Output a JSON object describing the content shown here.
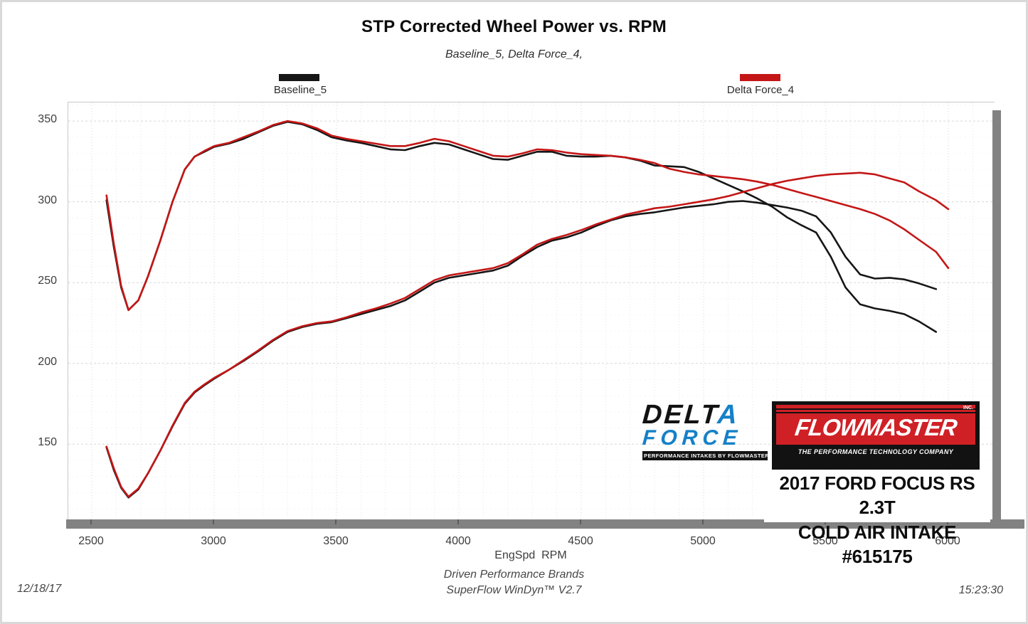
{
  "chart_data": {
    "type": "line",
    "title": "STP Corrected Wheel Power vs. RPM",
    "subtitle": "Baseline_5, Delta Force_4,",
    "xlabel": "EngSpd  RPM",
    "x_ticks": [
      2500,
      3000,
      3500,
      4000,
      4500,
      5000,
      5500,
      6000
    ],
    "y_ticks": [
      150,
      200,
      250,
      300,
      350
    ],
    "xlim": [
      2404,
      6189
    ],
    "ylim": [
      103,
      361.5
    ],
    "grid": true,
    "grid_minor_x_step": 100,
    "grid_minor_y_step": 10,
    "legend_position": "top",
    "series": [
      {
        "name": "Baseline_5",
        "color": "#161616",
        "rpm": [
          2560,
          2590,
          2620,
          2650,
          2690,
          2730,
          2780,
          2830,
          2880,
          2920,
          2960,
          3000,
          3060,
          3120,
          3180,
          3240,
          3300,
          3360,
          3420,
          3480,
          3540,
          3600,
          3660,
          3720,
          3780,
          3840,
          3900,
          3960,
          4020,
          4080,
          4140,
          4200,
          4260,
          4320,
          4380,
          4440,
          4500,
          4560,
          4620,
          4680,
          4740,
          4800,
          4860,
          4920,
          4980,
          5040,
          5100,
          5160,
          5220,
          5280,
          5340,
          5400,
          5460,
          5520,
          5580,
          5640,
          5700,
          5760,
          5820,
          5880,
          5950
        ],
        "torque": [
          301,
          272,
          247,
          233,
          239,
          254,
          276,
          300,
          320,
          328,
          331,
          334,
          336,
          339,
          343,
          347,
          349.5,
          348,
          344.5,
          340,
          338,
          336.5,
          334.5,
          332.5,
          332,
          334.5,
          336.5,
          335.5,
          332.5,
          329.5,
          326.5,
          326,
          328.5,
          331,
          331,
          328.5,
          328,
          328,
          328.5,
          327.5,
          325.5,
          322.5,
          322,
          321.5,
          318.5,
          314.5,
          310.5,
          306.5,
          302,
          297,
          290.5,
          285.5,
          281,
          266,
          247,
          236.5,
          234,
          232.5,
          230.5,
          226,
          219.5
        ],
        "power": [
          148,
          134,
          123,
          117,
          122,
          132,
          146,
          161,
          175,
          182,
          186.5,
          190.5,
          196,
          201.5,
          207.5,
          214,
          219.5,
          222.5,
          224.5,
          225.5,
          228,
          230.5,
          233,
          235.5,
          239,
          244.5,
          250,
          253,
          254.5,
          256,
          257.5,
          260.5,
          266.5,
          272,
          276,
          278,
          281,
          285,
          288.5,
          291,
          292.5,
          293.5,
          295,
          296.5,
          297.5,
          298.5,
          300,
          300.5,
          299.5,
          298,
          296.5,
          294.5,
          291,
          281,
          266,
          255,
          252.5,
          253,
          252,
          249.5,
          246
        ]
      },
      {
        "name": "Delta Force_4",
        "color": "#c41616",
        "rpm": [
          2560,
          2590,
          2620,
          2650,
          2690,
          2730,
          2780,
          2830,
          2880,
          2920,
          2960,
          3000,
          3060,
          3120,
          3180,
          3240,
          3300,
          3360,
          3420,
          3480,
          3540,
          3600,
          3660,
          3720,
          3780,
          3840,
          3900,
          3960,
          4020,
          4080,
          4140,
          4200,
          4260,
          4320,
          4380,
          4440,
          4500,
          4560,
          4620,
          4680,
          4740,
          4800,
          4860,
          4920,
          4980,
          5040,
          5100,
          5160,
          5220,
          5280,
          5340,
          5400,
          5460,
          5520,
          5580,
          5640,
          5700,
          5760,
          5820,
          5880,
          5950,
          6000
        ],
        "torque": [
          304,
          274,
          248,
          233,
          239,
          254,
          276,
          300,
          320,
          328,
          331.5,
          334.5,
          336.5,
          340,
          343.5,
          347.5,
          350,
          348.5,
          345.5,
          341,
          339,
          337.5,
          336,
          334.5,
          334.5,
          336.5,
          339,
          337.5,
          334.5,
          331.5,
          328.5,
          328,
          330,
          332.5,
          332,
          330.5,
          329.5,
          329,
          328.5,
          327.5,
          326,
          324,
          320.5,
          318.5,
          317,
          316,
          315,
          314,
          312.5,
          310.5,
          308,
          305.5,
          303,
          300.5,
          298,
          295.5,
          292.5,
          288.5,
          283,
          276.5,
          269,
          259
        ],
        "power": [
          148.5,
          135,
          123.5,
          117.5,
          122.5,
          132,
          146,
          161.5,
          175.5,
          182.5,
          187,
          191,
          196,
          202,
          208,
          214.5,
          220,
          223,
          225,
          226,
          228.5,
          231.5,
          234,
          237,
          240.5,
          246,
          251.5,
          254.5,
          256,
          257.5,
          259,
          262,
          267.5,
          273.5,
          277,
          279.5,
          282.5,
          286,
          289,
          292,
          294,
          296,
          297,
          298.5,
          300,
          301.5,
          303.5,
          306,
          308.5,
          311,
          313,
          314.5,
          316,
          317,
          317.5,
          318,
          317,
          314.5,
          312,
          306.5,
          301,
          295.5
        ]
      }
    ]
  },
  "axis_style": {
    "bar_color": "#828282",
    "grid_major_color": "#d7d7d7",
    "grid_minor_color": "#ececec",
    "frame_color": "#c9c9c9"
  },
  "branding": {
    "delta_force": {
      "delta_prefix": "DELT",
      "delta_a": "A",
      "force": "FORCE",
      "tagline": "PERFORMANCE INTAKES BY FLOWMASTER",
      "blue": "#1580c8"
    },
    "flowmaster": {
      "name": "FLOWMASTER",
      "inc": "INC.",
      "tagline": "THE PERFORMANCE TECHNOLOGY COMPANY",
      "red": "#cf2026"
    },
    "vehicle": {
      "line1": "2017 FORD FOCUS RS 2.3T",
      "line2": "COLD AIR INTAKE #615175"
    }
  },
  "footer": {
    "date": "12/18/17",
    "brand_line1": "Driven Performance Brands",
    "brand_line2": "SuperFlow WinDyn™ V2.7",
    "time": "15:23:30"
  }
}
